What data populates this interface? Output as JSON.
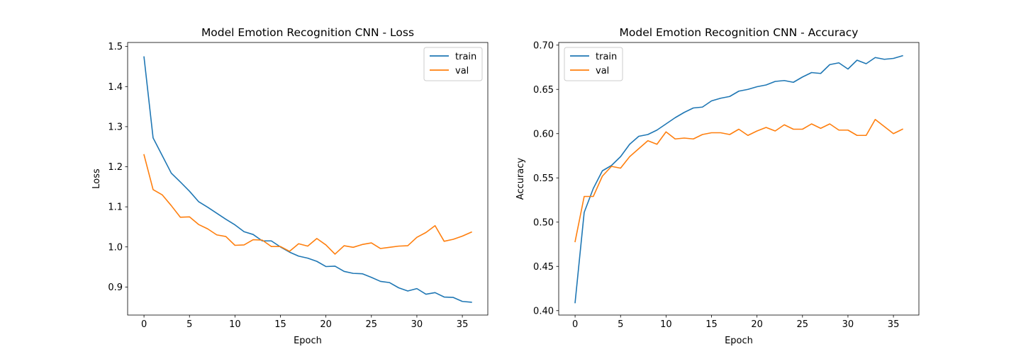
{
  "chart_data": [
    {
      "type": "line",
      "title": "Model Emotion Recognition CNN - Loss",
      "xlabel": "Epoch",
      "ylabel": "Loss",
      "xlim": [
        -1.8,
        37.8
      ],
      "ylim": [
        0.83,
        1.51
      ],
      "xticks": [
        0,
        5,
        10,
        15,
        20,
        25,
        30,
        35
      ],
      "yticks": [
        0.9,
        1.0,
        1.1,
        1.2,
        1.3,
        1.4,
        1.5
      ],
      "ytick_decimals": 1,
      "grid": false,
      "legend": {
        "position": "top-right",
        "entries": [
          "train",
          "val"
        ]
      },
      "x": [
        0,
        1,
        2,
        3,
        4,
        5,
        6,
        7,
        8,
        9,
        10,
        11,
        12,
        13,
        14,
        15,
        16,
        17,
        18,
        19,
        20,
        21,
        22,
        23,
        24,
        25,
        26,
        27,
        28,
        29,
        30,
        31,
        32,
        33,
        34,
        35,
        36
      ],
      "series": [
        {
          "name": "train",
          "color": "#1f77b4",
          "values": [
            1.474,
            1.272,
            1.228,
            1.184,
            1.162,
            1.139,
            1.113,
            1.099,
            1.084,
            1.069,
            1.055,
            1.038,
            1.031,
            1.015,
            1.015,
            1.0,
            0.987,
            0.977,
            0.972,
            0.964,
            0.951,
            0.952,
            0.939,
            0.934,
            0.933,
            0.924,
            0.914,
            0.911,
            0.898,
            0.89,
            0.896,
            0.882,
            0.886,
            0.875,
            0.874,
            0.864,
            0.862
          ]
        },
        {
          "name": "val",
          "color": "#ff7f0e",
          "values": [
            1.23,
            1.143,
            1.13,
            1.103,
            1.074,
            1.075,
            1.056,
            1.045,
            1.03,
            1.026,
            1.004,
            1.005,
            1.018,
            1.017,
            1.001,
            1.001,
            0.989,
            1.008,
            1.002,
            1.021,
            1.005,
            0.982,
            1.003,
            0.999,
            1.006,
            1.01,
            0.996,
            0.999,
            1.002,
            1.003,
            1.024,
            1.036,
            1.053,
            1.014,
            1.019,
            1.027,
            1.037
          ]
        }
      ]
    },
    {
      "type": "line",
      "title": "Model Emotion Recognition CNN - Accuracy",
      "xlabel": "Epoch",
      "ylabel": "Accuracy",
      "xlim": [
        -1.8,
        37.8
      ],
      "ylim": [
        0.395,
        0.703
      ],
      "xticks": [
        0,
        5,
        10,
        15,
        20,
        25,
        30,
        35
      ],
      "yticks": [
        0.4,
        0.45,
        0.5,
        0.55,
        0.6,
        0.65,
        0.7
      ],
      "ytick_decimals": 2,
      "grid": false,
      "legend": {
        "position": "top-left",
        "entries": [
          "train",
          "val"
        ]
      },
      "x": [
        0,
        1,
        2,
        3,
        4,
        5,
        6,
        7,
        8,
        9,
        10,
        11,
        12,
        13,
        14,
        15,
        16,
        17,
        18,
        19,
        20,
        21,
        22,
        23,
        24,
        25,
        26,
        27,
        28,
        29,
        30,
        31,
        32,
        33,
        34,
        35,
        36
      ],
      "series": [
        {
          "name": "train",
          "color": "#1f77b4",
          "values": [
            0.409,
            0.511,
            0.538,
            0.558,
            0.564,
            0.574,
            0.588,
            0.597,
            0.599,
            0.604,
            0.611,
            0.618,
            0.624,
            0.629,
            0.63,
            0.637,
            0.64,
            0.642,
            0.648,
            0.65,
            0.653,
            0.655,
            0.659,
            0.66,
            0.658,
            0.664,
            0.669,
            0.668,
            0.678,
            0.68,
            0.673,
            0.683,
            0.679,
            0.686,
            0.684,
            0.685,
            0.688
          ]
        },
        {
          "name": "val",
          "color": "#ff7f0e",
          "values": [
            0.478,
            0.529,
            0.529,
            0.552,
            0.563,
            0.561,
            0.574,
            0.583,
            0.592,
            0.588,
            0.602,
            0.594,
            0.595,
            0.594,
            0.599,
            0.601,
            0.601,
            0.599,
            0.605,
            0.598,
            0.603,
            0.607,
            0.603,
            0.61,
            0.605,
            0.605,
            0.611,
            0.606,
            0.611,
            0.604,
            0.604,
            0.598,
            0.598,
            0.616,
            0.608,
            0.6,
            0.605
          ]
        }
      ]
    }
  ]
}
